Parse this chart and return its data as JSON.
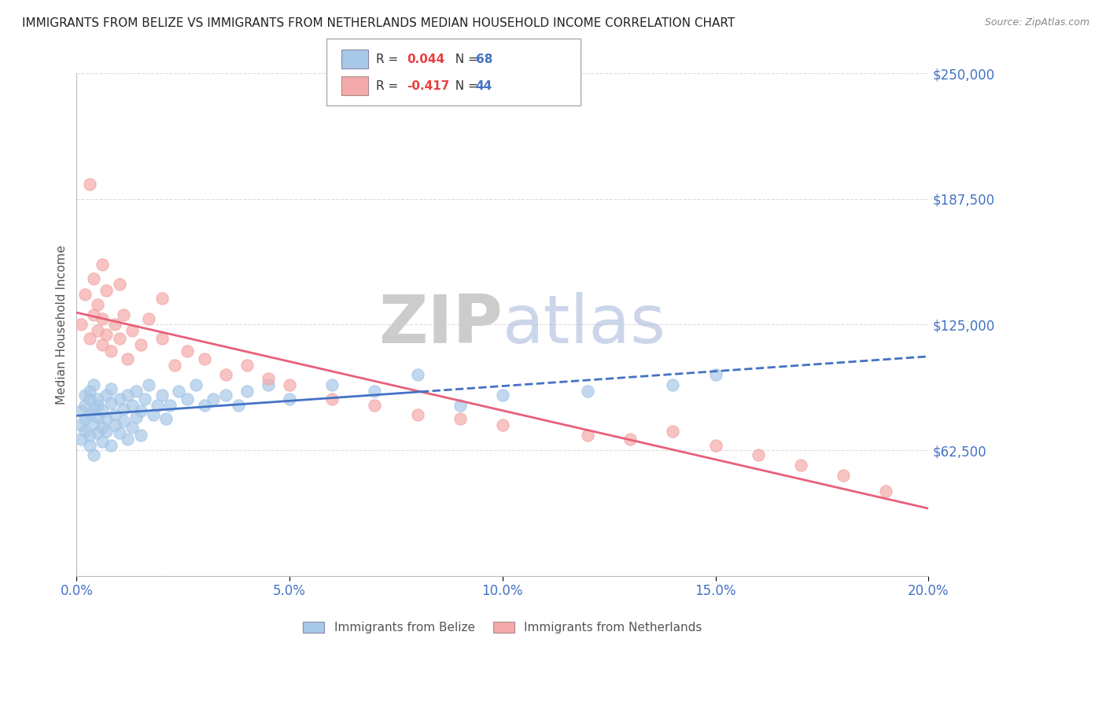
{
  "title": "IMMIGRANTS FROM BELIZE VS IMMIGRANTS FROM NETHERLANDS MEDIAN HOUSEHOLD INCOME CORRELATION CHART",
  "source": "Source: ZipAtlas.com",
  "ylabel": "Median Household Income",
  "xlim": [
    0.0,
    0.2
  ],
  "ylim": [
    0,
    250000
  ],
  "yticks": [
    0,
    62500,
    125000,
    187500,
    250000
  ],
  "ytick_labels": [
    "",
    "$62,500",
    "$125,000",
    "$187,500",
    "$250,000"
  ],
  "xticks": [
    0.0,
    0.05,
    0.1,
    0.15,
    0.2
  ],
  "xtick_labels": [
    "0.0%",
    "5.0%",
    "10.0%",
    "15.0%",
    "20.0%"
  ],
  "belize_color": "#A8C8E8",
  "netherlands_color": "#F4AAAA",
  "belize_line_color": "#4472C4",
  "netherlands_line_color": "#E8607A",
  "belize_R": 0.044,
  "belize_N": 68,
  "netherlands_R": -0.417,
  "netherlands_N": 44,
  "watermark_zip": "ZIP",
  "watermark_atlas": "atlas",
  "watermark_color_zip": "#CCCCCC",
  "watermark_color_atlas": "#AABBDD",
  "background_color": "#FFFFFF",
  "grid_color": "#DDDDDD",
  "title_color": "#222222",
  "axis_label_color": "#555555",
  "ytick_color": "#4472C4",
  "xtick_color": "#4472C4",
  "legend_R_color": "#E84040",
  "legend_N_color": "#4472C4",
  "belize_x": [
    0.001,
    0.001,
    0.001,
    0.002,
    0.002,
    0.002,
    0.002,
    0.003,
    0.003,
    0.003,
    0.003,
    0.003,
    0.004,
    0.004,
    0.004,
    0.004,
    0.005,
    0.005,
    0.005,
    0.005,
    0.006,
    0.006,
    0.006,
    0.007,
    0.007,
    0.007,
    0.008,
    0.008,
    0.008,
    0.009,
    0.009,
    0.01,
    0.01,
    0.011,
    0.011,
    0.012,
    0.012,
    0.013,
    0.013,
    0.014,
    0.014,
    0.015,
    0.015,
    0.016,
    0.017,
    0.018,
    0.019,
    0.02,
    0.021,
    0.022,
    0.024,
    0.026,
    0.028,
    0.03,
    0.032,
    0.035,
    0.038,
    0.04,
    0.045,
    0.05,
    0.06,
    0.07,
    0.08,
    0.09,
    0.1,
    0.12,
    0.14,
    0.15
  ],
  "belize_y": [
    82000,
    75000,
    68000,
    90000,
    78000,
    72000,
    85000,
    88000,
    70000,
    80000,
    65000,
    92000,
    83000,
    76000,
    60000,
    95000,
    79000,
    85000,
    71000,
    88000,
    74000,
    82000,
    67000,
    90000,
    78000,
    72000,
    86000,
    65000,
    93000,
    80000,
    75000,
    88000,
    71000,
    83000,
    77000,
    90000,
    68000,
    85000,
    74000,
    92000,
    79000,
    82000,
    70000,
    88000,
    95000,
    80000,
    85000,
    90000,
    78000,
    85000,
    92000,
    88000,
    95000,
    85000,
    88000,
    90000,
    85000,
    92000,
    95000,
    88000,
    95000,
    92000,
    100000,
    85000,
    90000,
    92000,
    95000,
    100000
  ],
  "netherlands_x": [
    0.001,
    0.002,
    0.003,
    0.004,
    0.004,
    0.005,
    0.005,
    0.006,
    0.006,
    0.007,
    0.007,
    0.008,
    0.009,
    0.01,
    0.011,
    0.012,
    0.013,
    0.015,
    0.017,
    0.02,
    0.023,
    0.026,
    0.03,
    0.035,
    0.04,
    0.045,
    0.05,
    0.06,
    0.07,
    0.08,
    0.09,
    0.1,
    0.12,
    0.13,
    0.14,
    0.15,
    0.16,
    0.17,
    0.18,
    0.19,
    0.003,
    0.006,
    0.01,
    0.02
  ],
  "netherlands_y": [
    125000,
    140000,
    118000,
    130000,
    148000,
    122000,
    135000,
    128000,
    115000,
    142000,
    120000,
    112000,
    125000,
    118000,
    130000,
    108000,
    122000,
    115000,
    128000,
    118000,
    105000,
    112000,
    108000,
    100000,
    105000,
    98000,
    95000,
    88000,
    85000,
    80000,
    78000,
    75000,
    70000,
    68000,
    72000,
    65000,
    60000,
    55000,
    50000,
    42000,
    195000,
    155000,
    145000,
    138000
  ]
}
